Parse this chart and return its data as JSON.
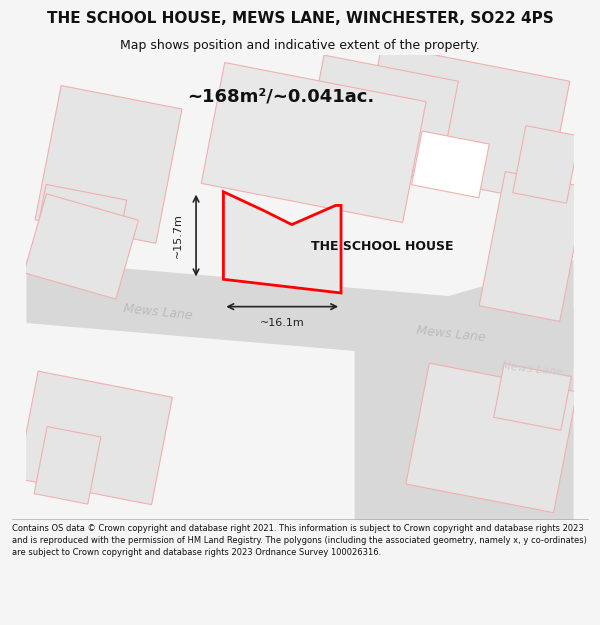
{
  "title_line1": "THE SCHOOL HOUSE, MEWS LANE, WINCHESTER, SO22 4PS",
  "title_line2": "Map shows position and indicative extent of the property.",
  "area_label": "~168m²/~0.041ac.",
  "property_label": "THE SCHOOL HOUSE",
  "width_label": "~16.1m",
  "height_label": "~15.7m",
  "footer": "Contains OS data © Crown copyright and database right 2021. This information is subject to Crown copyright and database rights 2023 and is reproduced with the permission of HM Land Registry. The polygons (including the associated geometry, namely x, y co-ordinates) are subject to Crown copyright and database rights 2023 Ordnance Survey 100026316.",
  "bg_color": "#f5f5f5",
  "map_bg": "#ffffff",
  "property_fill": "#e8e8e8",
  "property_edge": "#ff0000",
  "road_color": "#d8d8d8",
  "building_fill": "#e0e0e0",
  "building_edge": "#ffaaaa",
  "road_label_color": "#aaaaaa",
  "annotation_color": "#222222"
}
